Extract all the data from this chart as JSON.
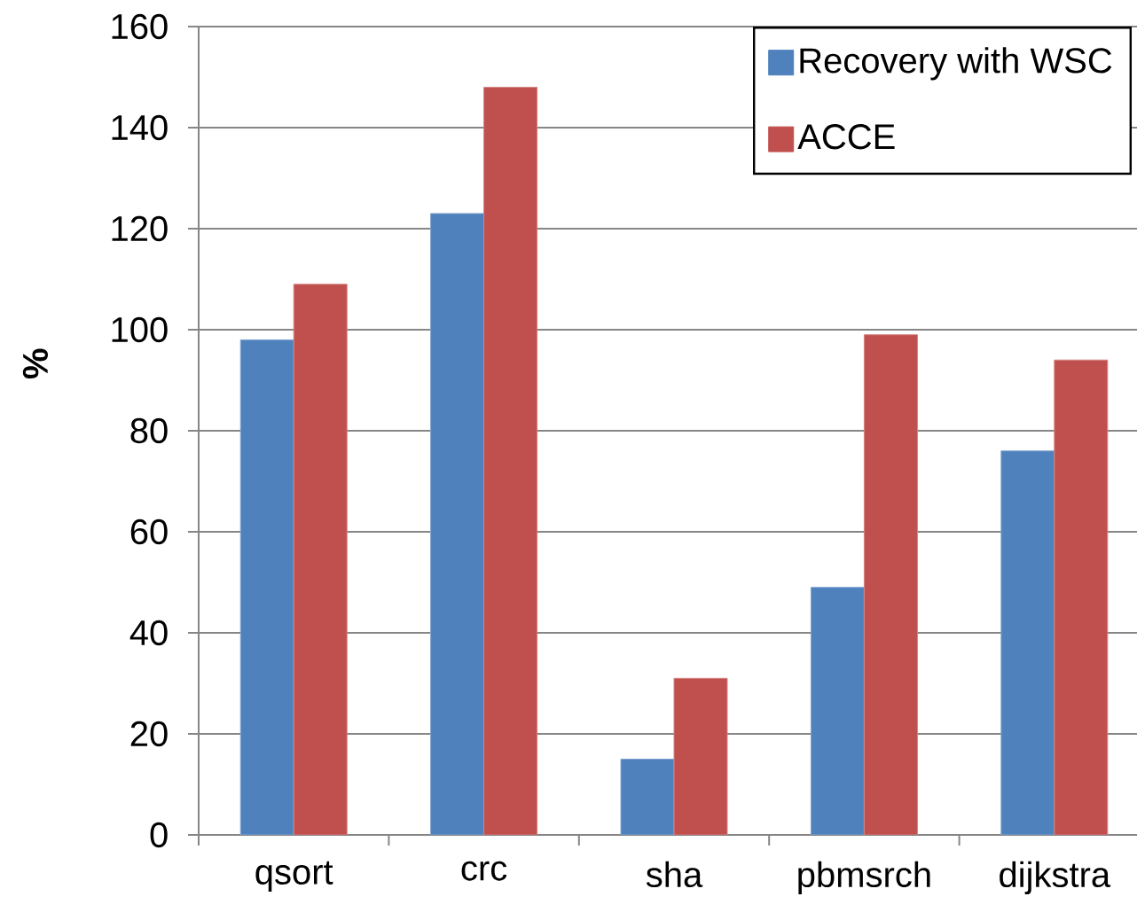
{
  "chart_data": {
    "type": "bar",
    "ylabel": "%",
    "categories": [
      "qsort",
      "crc",
      "sha",
      "pbmsrch",
      "dijkstra"
    ],
    "series": [
      {
        "name": "Recovery with WSC",
        "color": "#4f81bd",
        "values": [
          98,
          123,
          15,
          49,
          76
        ]
      },
      {
        "name": "ACCE",
        "color": "#c0504d",
        "values": [
          109,
          148,
          31,
          99,
          94
        ]
      }
    ],
    "ylim": [
      0,
      160
    ],
    "yticks": [
      0,
      20,
      40,
      60,
      80,
      100,
      120,
      140,
      160
    ],
    "grid": "y",
    "legend": "top right"
  }
}
